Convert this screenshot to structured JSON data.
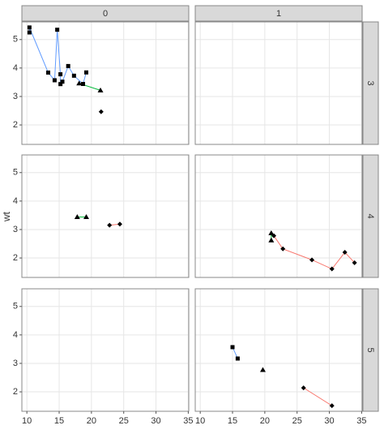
{
  "chart_data": {
    "type": "scatter",
    "y_label": "wt",
    "col_labels": [
      "0",
      "1"
    ],
    "row_labels": [
      "3",
      "4",
      "5"
    ],
    "xlim": [
      9.225,
      35.075
    ],
    "ylim": [
      1.317,
      5.62
    ],
    "xticks": [
      10,
      15,
      20,
      25,
      30,
      35
    ],
    "yticks": [
      2,
      3,
      4,
      5
    ],
    "grid": true,
    "panels": [
      [
        [
          {
            "shape": "diamond",
            "color": "#F8766D",
            "x": [
              21.5
            ],
            "y": [
              2.465
            ]
          },
          {
            "shape": "triangle",
            "color": "#00BA38",
            "x": [
              18.1,
              21.4
            ],
            "y": [
              3.46,
              3.215
            ]
          },
          {
            "shape": "square",
            "color": "#619CFF",
            "x": [
              10.4,
              10.4,
              13.3,
              14.3,
              14.7,
              15.2,
              15.2,
              15.5,
              16.4,
              17.3,
              18.7,
              19.2
            ],
            "y": [
              5.25,
              5.424,
              3.84,
              3.57,
              5.345,
              3.78,
              3.435,
              3.52,
              4.07,
              3.73,
              3.44,
              3.845
            ]
          }
        ],
        []
      ],
      [
        [
          {
            "shape": "diamond",
            "color": "#F8766D",
            "x": [
              22.8,
              24.4
            ],
            "y": [
              3.15,
              3.19
            ]
          },
          {
            "shape": "triangle",
            "color": "#00BA38",
            "x": [
              17.8,
              19.2
            ],
            "y": [
              3.44,
              3.44
            ]
          }
        ],
        [
          {
            "shape": "diamond",
            "color": "#F8766D",
            "x": [
              21.4,
              22.8,
              27.3,
              30.4,
              32.4,
              33.9
            ],
            "y": [
              2.78,
              2.32,
              1.935,
              1.615,
              2.2,
              1.835
            ]
          },
          {
            "shape": "triangle",
            "color": "#00BA38",
            "x": [
              21,
              21
            ],
            "y": [
              2.62,
              2.875
            ]
          }
        ]
      ],
      [
        [],
        [
          {
            "shape": "diamond",
            "color": "#F8766D",
            "x": [
              26,
              30.4
            ],
            "y": [
              2.14,
              1.513
            ]
          },
          {
            "shape": "triangle",
            "color": "#00BA38",
            "x": [
              19.7
            ],
            "y": [
              2.77
            ]
          },
          {
            "shape": "square",
            "color": "#619CFF",
            "x": [
              15,
              15.8
            ],
            "y": [
              3.57,
              3.17
            ]
          }
        ]
      ]
    ]
  }
}
